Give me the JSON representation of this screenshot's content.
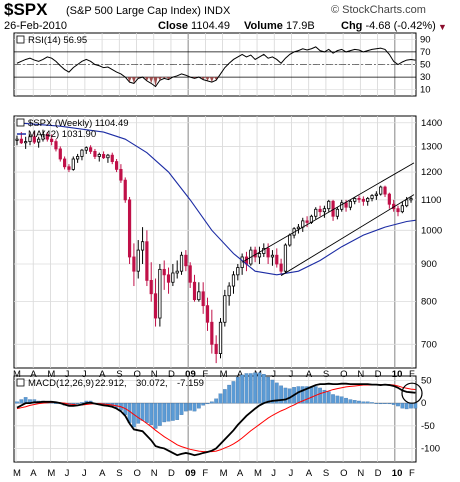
{
  "header": {
    "symbol": "$SPX",
    "name": "(S&P 500 Large Cap Index) INDX",
    "brand": "© StockCharts.com",
    "date": "26-Feb-2010",
    "close_label": "Close",
    "close_value": "1104.49",
    "volume_label": "Volume",
    "volume_value": "17.9B",
    "chg_label": "Chg",
    "chg_value": "-4.68 (-0.42%)",
    "chg_marker": "▼"
  },
  "rsi": {
    "legend": "RSI(14) 56.95",
    "y_ticks": [
      "90",
      "70",
      "50",
      "30",
      "10"
    ]
  },
  "price": {
    "legend_main": "$SPX (Weekly) 1104.49",
    "legend_ma": "MA(42) 1031.90",
    "y_ticks": [
      "1400",
      "1300",
      "1200",
      "1100",
      "1000",
      "900",
      "800",
      "700"
    ]
  },
  "macd": {
    "legend_name": "MACD(12,26,9)",
    "legend_v1": "22.912,",
    "legend_v2": "30.072,",
    "legend_v3": "-7.159",
    "y_ticks": [
      "50",
      "0",
      "-50",
      "-100"
    ]
  },
  "months": [
    "M",
    "A",
    "M",
    "J",
    "J",
    "A",
    "S",
    "O",
    "N",
    "D",
    "09",
    "F",
    "M",
    "A",
    "M",
    "J",
    "J",
    "A",
    "S",
    "O",
    "N",
    "D",
    "10",
    "F"
  ],
  "colors": {
    "up": "#000000",
    "down": "#c01048",
    "ma": "#1c2ca4",
    "signal": "#ff0000",
    "hist": "#5b9bd5",
    "rsi_fill": "#a05050"
  },
  "chart_data": {
    "type": "candlestick",
    "title": "$SPX (S&P 500 Large Cap Index) INDX",
    "frequency": "weekly",
    "x_range": [
      "2008-03",
      "2010-02"
    ],
    "ylim": [
      650,
      1430
    ],
    "series": [
      {
        "name": "$SPX (Weekly)",
        "kind": "ohlc",
        "values": [
          [
            1325,
            1345,
            1305,
            1330
          ],
          [
            1330,
            1360,
            1310,
            1315
          ],
          [
            1315,
            1340,
            1290,
            1320
          ],
          [
            1320,
            1350,
            1305,
            1340
          ],
          [
            1340,
            1360,
            1310,
            1318
          ],
          [
            1318,
            1340,
            1295,
            1330
          ],
          [
            1330,
            1370,
            1320,
            1350
          ],
          [
            1350,
            1360,
            1320,
            1330
          ],
          [
            1330,
            1350,
            1305,
            1320
          ],
          [
            1320,
            1330,
            1280,
            1290
          ],
          [
            1290,
            1300,
            1240,
            1250
          ],
          [
            1250,
            1260,
            1210,
            1220
          ],
          [
            1220,
            1230,
            1200,
            1210
          ],
          [
            1210,
            1260,
            1205,
            1250
          ],
          [
            1250,
            1270,
            1235,
            1260
          ],
          [
            1260,
            1290,
            1245,
            1285
          ],
          [
            1285,
            1300,
            1270,
            1295
          ],
          [
            1295,
            1305,
            1270,
            1280
          ],
          [
            1280,
            1290,
            1250,
            1260
          ],
          [
            1260,
            1275,
            1240,
            1268
          ],
          [
            1268,
            1280,
            1250,
            1255
          ],
          [
            1255,
            1270,
            1235,
            1265
          ],
          [
            1265,
            1275,
            1230,
            1240
          ],
          [
            1240,
            1250,
            1200,
            1210
          ],
          [
            1210,
            1230,
            1160,
            1170
          ],
          [
            1170,
            1180,
            1090,
            1100
          ],
          [
            1100,
            1110,
            900,
            920
          ],
          [
            920,
            960,
            840,
            880
          ],
          [
            880,
            970,
            860,
            940
          ],
          [
            940,
            1010,
            900,
            965
          ],
          [
            965,
            1000,
            840,
            855
          ],
          [
            855,
            905,
            800,
            820
          ],
          [
            820,
            860,
            740,
            760
          ],
          [
            760,
            900,
            740,
            885
          ],
          [
            885,
            910,
            830,
            870
          ],
          [
            870,
            890,
            820,
            850
          ],
          [
            850,
            900,
            840,
            875
          ],
          [
            875,
            910,
            860,
            880
          ],
          [
            880,
            935,
            870,
            925
          ],
          [
            925,
            940,
            880,
            895
          ],
          [
            895,
            905,
            835,
            850
          ],
          [
            850,
            870,
            800,
            805
          ],
          [
            805,
            850,
            800,
            825
          ],
          [
            825,
            850,
            770,
            790
          ],
          [
            790,
            810,
            730,
            750
          ],
          [
            750,
            780,
            680,
            700
          ],
          [
            700,
            720,
            660,
            680
          ],
          [
            680,
            760,
            670,
            750
          ],
          [
            750,
            830,
            740,
            815
          ],
          [
            815,
            850,
            790,
            840
          ],
          [
            840,
            880,
            820,
            870
          ],
          [
            870,
            900,
            855,
            890
          ],
          [
            890,
            930,
            870,
            920
          ],
          [
            920,
            935,
            880,
            900
          ],
          [
            900,
            950,
            895,
            940
          ],
          [
            940,
            950,
            905,
            920
          ],
          [
            920,
            950,
            900,
            930
          ],
          [
            930,
            960,
            920,
            945
          ],
          [
            945,
            960,
            900,
            920
          ],
          [
            920,
            940,
            895,
            925
          ],
          [
            925,
            945,
            890,
            900
          ],
          [
            900,
            915,
            870,
            880
          ],
          [
            880,
            960,
            875,
            955
          ],
          [
            955,
            990,
            950,
            985
          ],
          [
            985,
            1010,
            975,
            1005
          ],
          [
            1005,
            1020,
            990,
            1010
          ],
          [
            1010,
            1040,
            995,
            1030
          ],
          [
            1030,
            1045,
            1010,
            1025
          ],
          [
            1025,
            1050,
            1020,
            1045
          ],
          [
            1045,
            1075,
            1035,
            1068
          ],
          [
            1068,
            1080,
            1045,
            1060
          ],
          [
            1060,
            1080,
            1040,
            1070
          ],
          [
            1070,
            1100,
            1060,
            1095
          ],
          [
            1095,
            1100,
            1030,
            1045
          ],
          [
            1045,
            1075,
            1035,
            1068
          ],
          [
            1068,
            1100,
            1060,
            1090
          ],
          [
            1090,
            1100,
            1060,
            1075
          ],
          [
            1075,
            1100,
            1065,
            1095
          ],
          [
            1095,
            1110,
            1085,
            1105
          ],
          [
            1105,
            1115,
            1090,
            1102
          ],
          [
            1102,
            1112,
            1080,
            1095
          ],
          [
            1095,
            1110,
            1080,
            1105
          ],
          [
            1105,
            1120,
            1095,
            1115
          ],
          [
            1115,
            1130,
            1100,
            1120
          ],
          [
            1120,
            1150,
            1115,
            1145
          ],
          [
            1145,
            1150,
            1110,
            1120
          ],
          [
            1120,
            1125,
            1070,
            1085
          ],
          [
            1085,
            1100,
            1060,
            1070
          ],
          [
            1070,
            1080,
            1045,
            1060
          ],
          [
            1060,
            1095,
            1055,
            1080
          ],
          [
            1080,
            1110,
            1075,
            1100
          ],
          [
            1100,
            1112,
            1090,
            1104.49
          ]
        ]
      },
      {
        "name": "MA(42)",
        "kind": "line",
        "x_week": [
          0,
          10,
          20,
          25,
          30,
          35,
          40,
          45,
          50,
          55,
          60,
          65,
          70,
          75,
          80,
          85,
          90,
          92
        ],
        "values": [
          1400,
          1385,
          1360,
          1330,
          1275,
          1200,
          1100,
          1000,
          930,
          880,
          870,
          880,
          910,
          950,
          985,
          1010,
          1028,
          1031.9
        ]
      }
    ],
    "rsi": {
      "name": "RSI(14)",
      "ylim": [
        0,
        100
      ],
      "levels": [
        70,
        50,
        30
      ],
      "values": [
        52,
        55,
        58,
        60,
        57,
        55,
        58,
        62,
        60,
        55,
        48,
        42,
        38,
        45,
        50,
        55,
        58,
        55,
        50,
        48,
        45,
        46,
        42,
        38,
        35,
        30,
        22,
        20,
        28,
        30,
        24,
        20,
        15,
        25,
        28,
        26,
        30,
        32,
        35,
        33,
        30,
        28,
        30,
        26,
        24,
        22,
        25,
        35,
        45,
        52,
        58,
        62,
        66,
        62,
        65,
        58,
        62,
        66,
        60,
        62,
        58,
        52,
        60,
        66,
        70,
        72,
        75,
        73,
        75,
        78,
        72,
        70,
        74,
        68,
        72,
        74,
        70,
        72,
        74,
        73,
        70,
        72,
        74,
        75,
        76,
        74,
        66,
        55,
        50,
        54,
        57,
        58,
        56.95
      ]
    },
    "macd": {
      "name": "MACD(12,26,9)",
      "ylim": [
        -130,
        60
      ],
      "current": {
        "macd": 22.912,
        "signal": 30.072,
        "histogram": -7.159
      },
      "macd_line": [
        -10,
        -5,
        0,
        0,
        2,
        2,
        3,
        3,
        3,
        2,
        0,
        -3,
        -6,
        -6,
        -5,
        -3,
        0,
        1,
        -1,
        -3,
        -5,
        -6,
        -8,
        -12,
        -18,
        -28,
        -45,
        -58,
        -60,
        -62,
        -72,
        -82,
        -95,
        -98,
        -100,
        -105,
        -110,
        -115,
        -112,
        -110,
        -112,
        -115,
        -113,
        -110,
        -108,
        -105,
        -100,
        -90,
        -80,
        -70,
        -60,
        -48,
        -38,
        -28,
        -20,
        -12,
        -5,
        0,
        3,
        5,
        6,
        7,
        8,
        12,
        18,
        24,
        28,
        32,
        36,
        40,
        42,
        42,
        43,
        42,
        42,
        43,
        43,
        42,
        42,
        42,
        42,
        42,
        41,
        41,
        40,
        41,
        40,
        38,
        34,
        28,
        25,
        24,
        22.912
      ],
      "signal_line": [
        -12,
        -10,
        -8,
        -5,
        -3,
        -1,
        0,
        1,
        2,
        2,
        1,
        0,
        -2,
        -3,
        -4,
        -4,
        -3,
        -2,
        -1,
        -1,
        -2,
        -3,
        -4,
        -6,
        -8,
        -12,
        -18,
        -25,
        -32,
        -38,
        -45,
        -52,
        -60,
        -67,
        -74,
        -80,
        -86,
        -92,
        -96,
        -99,
        -102,
        -104,
        -106,
        -107,
        -107,
        -107,
        -106,
        -103,
        -99,
        -95,
        -90,
        -84,
        -77,
        -69,
        -61,
        -54,
        -47,
        -40,
        -33,
        -27,
        -22,
        -17,
        -13,
        -8,
        -4,
        1,
        5,
        9,
        13,
        17,
        21,
        24,
        27,
        30,
        32,
        34,
        36,
        37,
        38,
        39,
        40,
        40,
        40,
        41,
        41,
        41,
        41,
        40,
        38,
        35,
        33,
        31,
        30.072
      ]
    }
  }
}
